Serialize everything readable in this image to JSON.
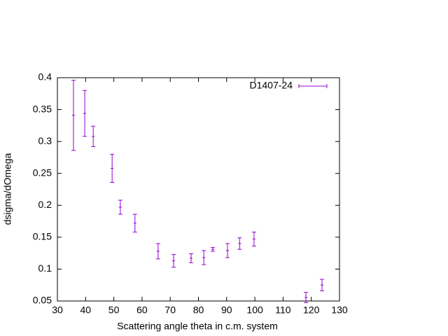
{
  "chart_data": {
    "type": "errorbar",
    "xlabel": "Scattering angle theta in c.m. system",
    "ylabel": "dsigma/dOmega",
    "xlim": [
      30,
      130
    ],
    "xticks": [
      30,
      40,
      50,
      60,
      70,
      80,
      90,
      100,
      110,
      120,
      130
    ],
    "ylim": [
      0.05,
      0.4
    ],
    "yticks": [
      0.05,
      0.1,
      0.15,
      0.2,
      0.25,
      0.3,
      0.35,
      0.4
    ],
    "grid": false,
    "legend": "top-right",
    "series": [
      {
        "name": "D1407-24",
        "color": "#9400d3",
        "x": [
          35.7,
          39.7,
          42.7,
          49.4,
          52.3,
          57.5,
          65.7,
          71.2,
          77.4,
          81.9,
          85.1,
          90.3,
          94.6,
          99.7,
          118.1,
          123.8
        ],
        "values": [
          0.341,
          0.344,
          0.308,
          0.258,
          0.197,
          0.172,
          0.128,
          0.113,
          0.117,
          0.118,
          0.131,
          0.129,
          0.14,
          0.147,
          0.0555,
          0.075
        ],
        "errors": [
          0.055,
          0.036,
          0.016,
          0.022,
          0.011,
          0.014,
          0.012,
          0.01,
          0.007,
          0.011,
          0.003,
          0.011,
          0.009,
          0.011,
          0.008,
          0.009
        ]
      }
    ]
  }
}
